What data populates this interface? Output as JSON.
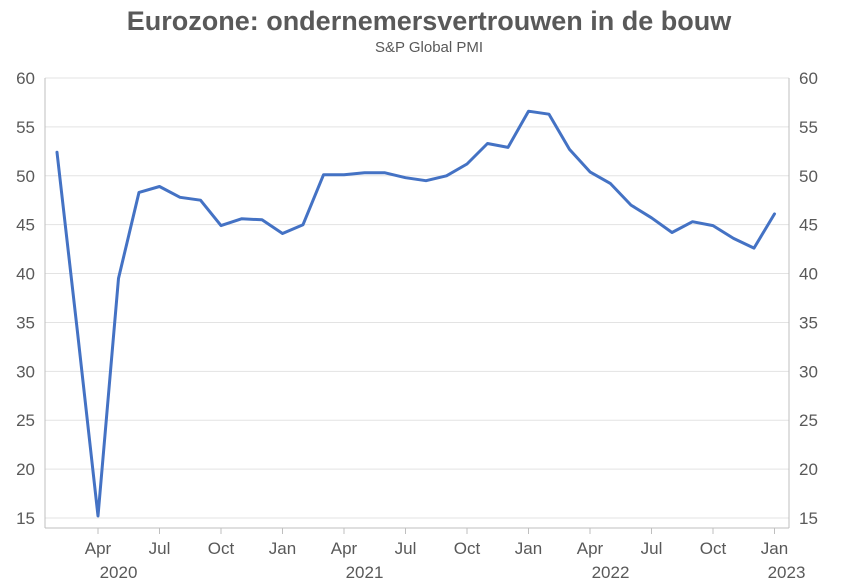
{
  "chart_data": {
    "type": "line",
    "title": "Eurozone: ondernemersvertrouwen in de bouw",
    "subtitle": "S&P Global PMI",
    "xlabel": "",
    "ylabel": "",
    "ylim": [
      15,
      60
    ],
    "yticks": [
      15,
      20,
      25,
      30,
      35,
      40,
      45,
      50,
      55,
      60
    ],
    "ytick_labels": [
      "15",
      "20",
      "25",
      "30",
      "35",
      "40",
      "45",
      "50",
      "55",
      "60"
    ],
    "month_ticks": [
      "Apr",
      "Jul",
      "Oct",
      "Jan",
      "Apr",
      "Jul",
      "Oct",
      "Jan",
      "Apr",
      "Jul",
      "Oct",
      "Jan"
    ],
    "year_labels": [
      "2020",
      "2021",
      "2022",
      "2023"
    ],
    "grid": true,
    "color": "#4472C4",
    "x": [
      "2020-02",
      "2020-03",
      "2020-04",
      "2020-05",
      "2020-06",
      "2020-07",
      "2020-08",
      "2020-09",
      "2020-10",
      "2020-11",
      "2020-12",
      "2021-01",
      "2021-02",
      "2021-03",
      "2021-04",
      "2021-05",
      "2021-06",
      "2021-07",
      "2021-08",
      "2021-09",
      "2021-10",
      "2021-11",
      "2021-12",
      "2022-01",
      "2022-02",
      "2022-03",
      "2022-04",
      "2022-05",
      "2022-06",
      "2022-07",
      "2022-08",
      "2022-09",
      "2022-10",
      "2022-11",
      "2022-12",
      "2023-01"
    ],
    "values": [
      52.4,
      34.0,
      15.2,
      39.5,
      48.3,
      48.9,
      47.8,
      47.5,
      44.9,
      45.6,
      45.5,
      44.1,
      45.0,
      50.1,
      50.1,
      50.3,
      50.3,
      49.8,
      49.5,
      50.0,
      51.2,
      53.3,
      52.9,
      56.6,
      56.3,
      52.7,
      50.4,
      49.2,
      47.0,
      45.7,
      44.2,
      45.3,
      44.9,
      43.6,
      42.6,
      46.1
    ]
  }
}
